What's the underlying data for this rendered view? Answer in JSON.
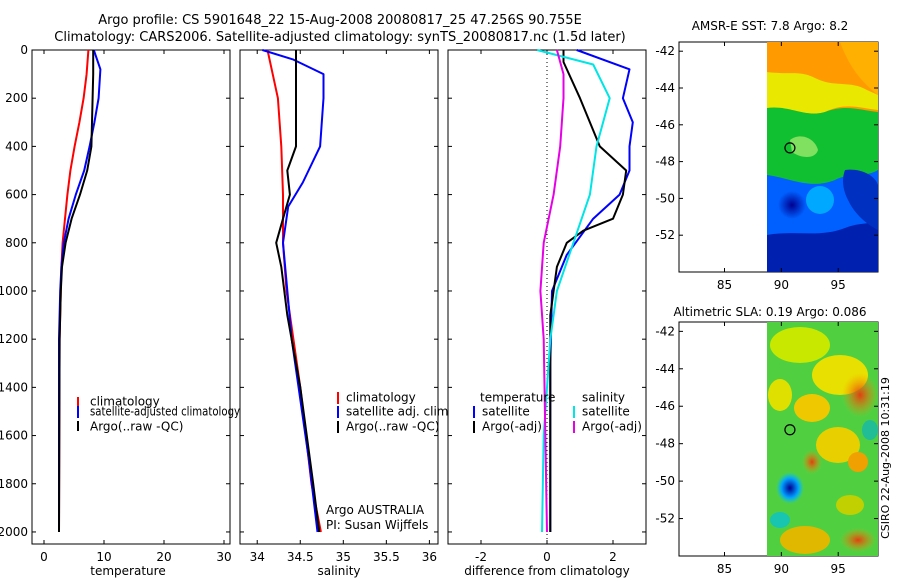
{
  "header": {
    "line1": "Argo profile: CS 5901648_22 15-Aug-2008 20080817_25 47.256S 90.755E",
    "line2": "Climatology: CARS2006. Satellite-adjusted climatology: synTS_20080817.nc (1.5d later)"
  },
  "side_label": "CSIRO 22-Aug-2008 10:31:19",
  "colors": {
    "climatology": "#ff0000",
    "satellite": "#0000ff",
    "argo": "#000000",
    "sat_sal": "#00e5e5",
    "argo_sal": "#e500e5"
  },
  "chart_data": [
    {
      "type": "line",
      "id": "temperature",
      "xlabel": "temperature",
      "xlim": [
        -2,
        31
      ],
      "ylim": [
        2050,
        0
      ],
      "xticks": [
        0,
        10,
        20,
        30
      ],
      "yticks": [
        0,
        200,
        400,
        600,
        800,
        1000,
        1200,
        1400,
        1600,
        1800,
        2000
      ],
      "series": [
        {
          "name": "climatology",
          "color": "#ff0000",
          "x": [
            7.4,
            7.1,
            6.6,
            5.9,
            5.1,
            4.4,
            3.9,
            3.5,
            3.1,
            2.9,
            2.8,
            2.6,
            2.5
          ],
          "y": [
            0,
            100,
            200,
            300,
            400,
            500,
            600,
            700,
            800,
            900,
            1000,
            1200,
            2000
          ]
        },
        {
          "name": "satellite-adjusted climatology",
          "color": "#0000ff",
          "x": [
            8.3,
            9.4,
            9.1,
            8.4,
            7.6,
            6.7,
            5.3,
            4.1,
            3.3,
            2.9,
            2.7,
            2.5,
            2.5
          ],
          "y": [
            0,
            80,
            200,
            300,
            400,
            500,
            600,
            700,
            800,
            900,
            1000,
            1200,
            2000
          ]
        },
        {
          "name": "Argo(..raw -QC)",
          "color": "#000000",
          "x": [
            8.2,
            8.2,
            8.1,
            8.0,
            7.9,
            7.2,
            6.0,
            4.6,
            3.6,
            3.0,
            2.8,
            2.6,
            2.5
          ],
          "y": [
            0,
            100,
            200,
            300,
            400,
            500,
            600,
            700,
            800,
            900,
            1000,
            1200,
            2000
          ]
        }
      ],
      "legend": [
        "climatology",
        "satellite-adjusted climatology",
        "Argo(..raw -QC)"
      ]
    },
    {
      "type": "line",
      "id": "salinity",
      "xlabel": "salinity",
      "xlim": [
        33.8,
        36.1
      ],
      "ylim": [
        2050,
        0
      ],
      "xticks": [
        34,
        34.5,
        35,
        35.5,
        36
      ],
      "yticks": [
        0,
        200,
        400,
        600,
        800,
        1000,
        1200,
        1400,
        1600,
        1800,
        2000
      ],
      "series": [
        {
          "name": "climatology",
          "color": "#ff0000",
          "x": [
            34.12,
            34.18,
            34.24,
            34.26,
            34.28,
            34.3,
            34.3,
            34.34,
            34.5,
            34.63,
            34.74
          ],
          "y": [
            0,
            100,
            200,
            300,
            400,
            600,
            800,
            1000,
            1400,
            1800,
            2000
          ]
        },
        {
          "name": "satellite adj. clim.",
          "color": "#0000ff",
          "x": [
            34.06,
            34.42,
            34.77,
            34.77,
            34.73,
            34.53,
            34.36,
            34.3,
            34.4,
            34.6,
            34.7
          ],
          "y": [
            0,
            40,
            100,
            200,
            400,
            550,
            650,
            800,
            1200,
            1700,
            2000
          ]
        },
        {
          "name": "Argo(..raw -QC)",
          "color": "#000000",
          "x": [
            34.45,
            34.45,
            34.45,
            34.45,
            34.35,
            34.38,
            34.3,
            34.22,
            34.28,
            34.35,
            34.5,
            34.65,
            34.72
          ],
          "y": [
            0,
            100,
            200,
            400,
            500,
            600,
            700,
            800,
            900,
            1100,
            1400,
            1800,
            2000
          ]
        }
      ],
      "legend": [
        "climatology",
        "satellite adj. clim.",
        "Argo(..raw -QC)"
      ],
      "annotations": [
        "Argo AUSTRALIA",
        "PI: Susan Wijffels"
      ]
    },
    {
      "type": "line",
      "id": "difference",
      "xlabel": "difference from climatology",
      "xlim": [
        -3,
        3
      ],
      "ylim": [
        2050,
        0
      ],
      "xticks": [
        -2,
        0,
        2
      ],
      "zero_line": true,
      "yticks": [
        0,
        200,
        400,
        600,
        800,
        1000,
        1200,
        1400,
        1600,
        1800,
        2000
      ],
      "series": [
        {
          "name": "temperature satellite",
          "color": "#0000ff",
          "x": [
            0.9,
            2.5,
            2.3,
            2.6,
            2.5,
            2.5,
            2.2,
            1.4,
            0.6,
            0.15,
            0.1,
            0.1
          ],
          "y": [
            0,
            80,
            200,
            300,
            400,
            500,
            600,
            700,
            850,
            1000,
            1300,
            2000
          ]
        },
        {
          "name": "temperature Argo(-adj)",
          "color": "#000000",
          "x": [
            0.5,
            0.5,
            1.0,
            1.6,
            2.4,
            2.3,
            2.0,
            1.1,
            0.6,
            0.3,
            0.1,
            0.1
          ],
          "y": [
            0,
            50,
            200,
            400,
            500,
            600,
            700,
            750,
            800,
            900,
            1100,
            2000
          ]
        },
        {
          "name": "salinity satellite",
          "color": "#00e5e5",
          "x": [
            -0.3,
            1.4,
            1.9,
            1.5,
            1.3,
            0.8,
            0.3,
            0.1,
            -0.1,
            -0.15
          ],
          "y": [
            0,
            60,
            200,
            400,
            600,
            800,
            1000,
            1200,
            1600,
            2000
          ]
        },
        {
          "name": "salinity Argo(-adj)",
          "color": "#e500e5",
          "x": [
            0.3,
            0.5,
            0.5,
            0.4,
            0.2,
            -0.1,
            -0.2,
            -0.1,
            0.0
          ],
          "y": [
            0,
            100,
            200,
            400,
            600,
            800,
            1000,
            1200,
            2000
          ]
        }
      ],
      "legend_headers": [
        "temperature",
        "salinity"
      ],
      "legend": [
        "satellite",
        "Argo(-adj)",
        "satellite",
        "Argo(-adj)"
      ]
    },
    {
      "type": "heatmap",
      "id": "sst-map",
      "title": "AMSR-E SST: 7.8 Argo: 8.2",
      "xlim": [
        81,
        98.5
      ],
      "ylim": [
        -54,
        -41.5
      ],
      "xticks": [
        85,
        90,
        95
      ],
      "yticks": [
        -42,
        -44,
        -46,
        -48,
        -50,
        -52
      ],
      "argo_position": [
        90.755,
        -47.256
      ]
    },
    {
      "type": "heatmap",
      "id": "sla-map",
      "title": "Altimetric SLA: 0.19 Argo: 0.086",
      "xlim": [
        81,
        98.5
      ],
      "ylim": [
        -54,
        -41.5
      ],
      "xticks": [
        85,
        90,
        95
      ],
      "yticks": [
        -42,
        -44,
        -46,
        -48,
        -50,
        -52
      ],
      "argo_position": [
        90.755,
        -47.256
      ]
    }
  ]
}
